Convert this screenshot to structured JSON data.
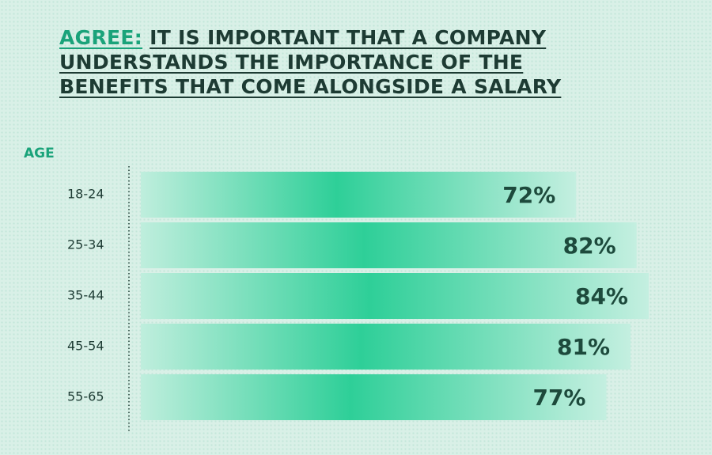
{
  "chart_data": {
    "type": "bar",
    "orientation": "horizontal",
    "title_highlight": "AGREE:",
    "title": [
      "IT IS IMPORTANT THAT A COMPANY",
      "UNDERSTANDS THE IMPORTANCE OF THE",
      "BENEFITS THAT COME ALONGSIDE A SALARY"
    ],
    "y_label": "AGE",
    "categories": [
      "18-24",
      "25-34",
      "35-44",
      "45-54",
      "55-65"
    ],
    "values": [
      72,
      82,
      84,
      81,
      77
    ],
    "value_labels": [
      "72%",
      "82%",
      "84%",
      "81%",
      "77%"
    ],
    "color": "#2ecf98"
  }
}
